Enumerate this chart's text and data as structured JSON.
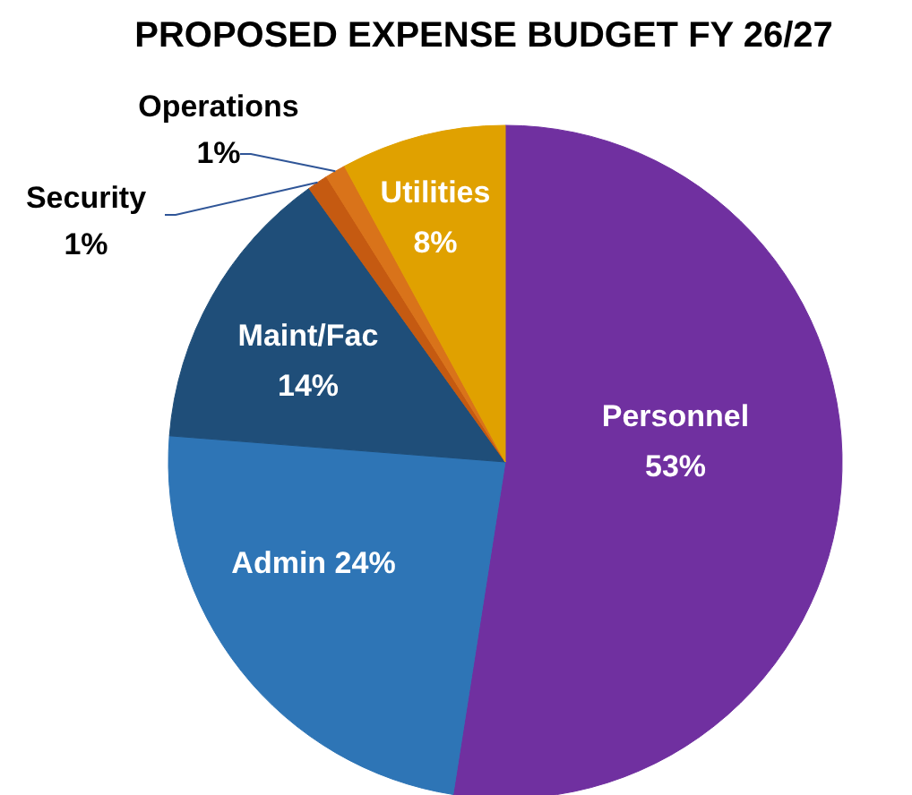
{
  "chart_data": {
    "type": "pie",
    "title": "PROPOSED EXPENSE BUDGET FY 26/27",
    "categories": [
      "Personnel",
      "Admin",
      "Maint/Fac",
      "Security",
      "Operations",
      "Utilities"
    ],
    "values": [
      53,
      24,
      14,
      1,
      1,
      8
    ],
    "value_labels": [
      "53%",
      "24%",
      "14%",
      "1%",
      "1%",
      "8%"
    ],
    "colors": [
      "#7030a0",
      "#2e75b6",
      "#1f4e79",
      "#c55a11",
      "#d9731a",
      "#e0a100"
    ]
  }
}
